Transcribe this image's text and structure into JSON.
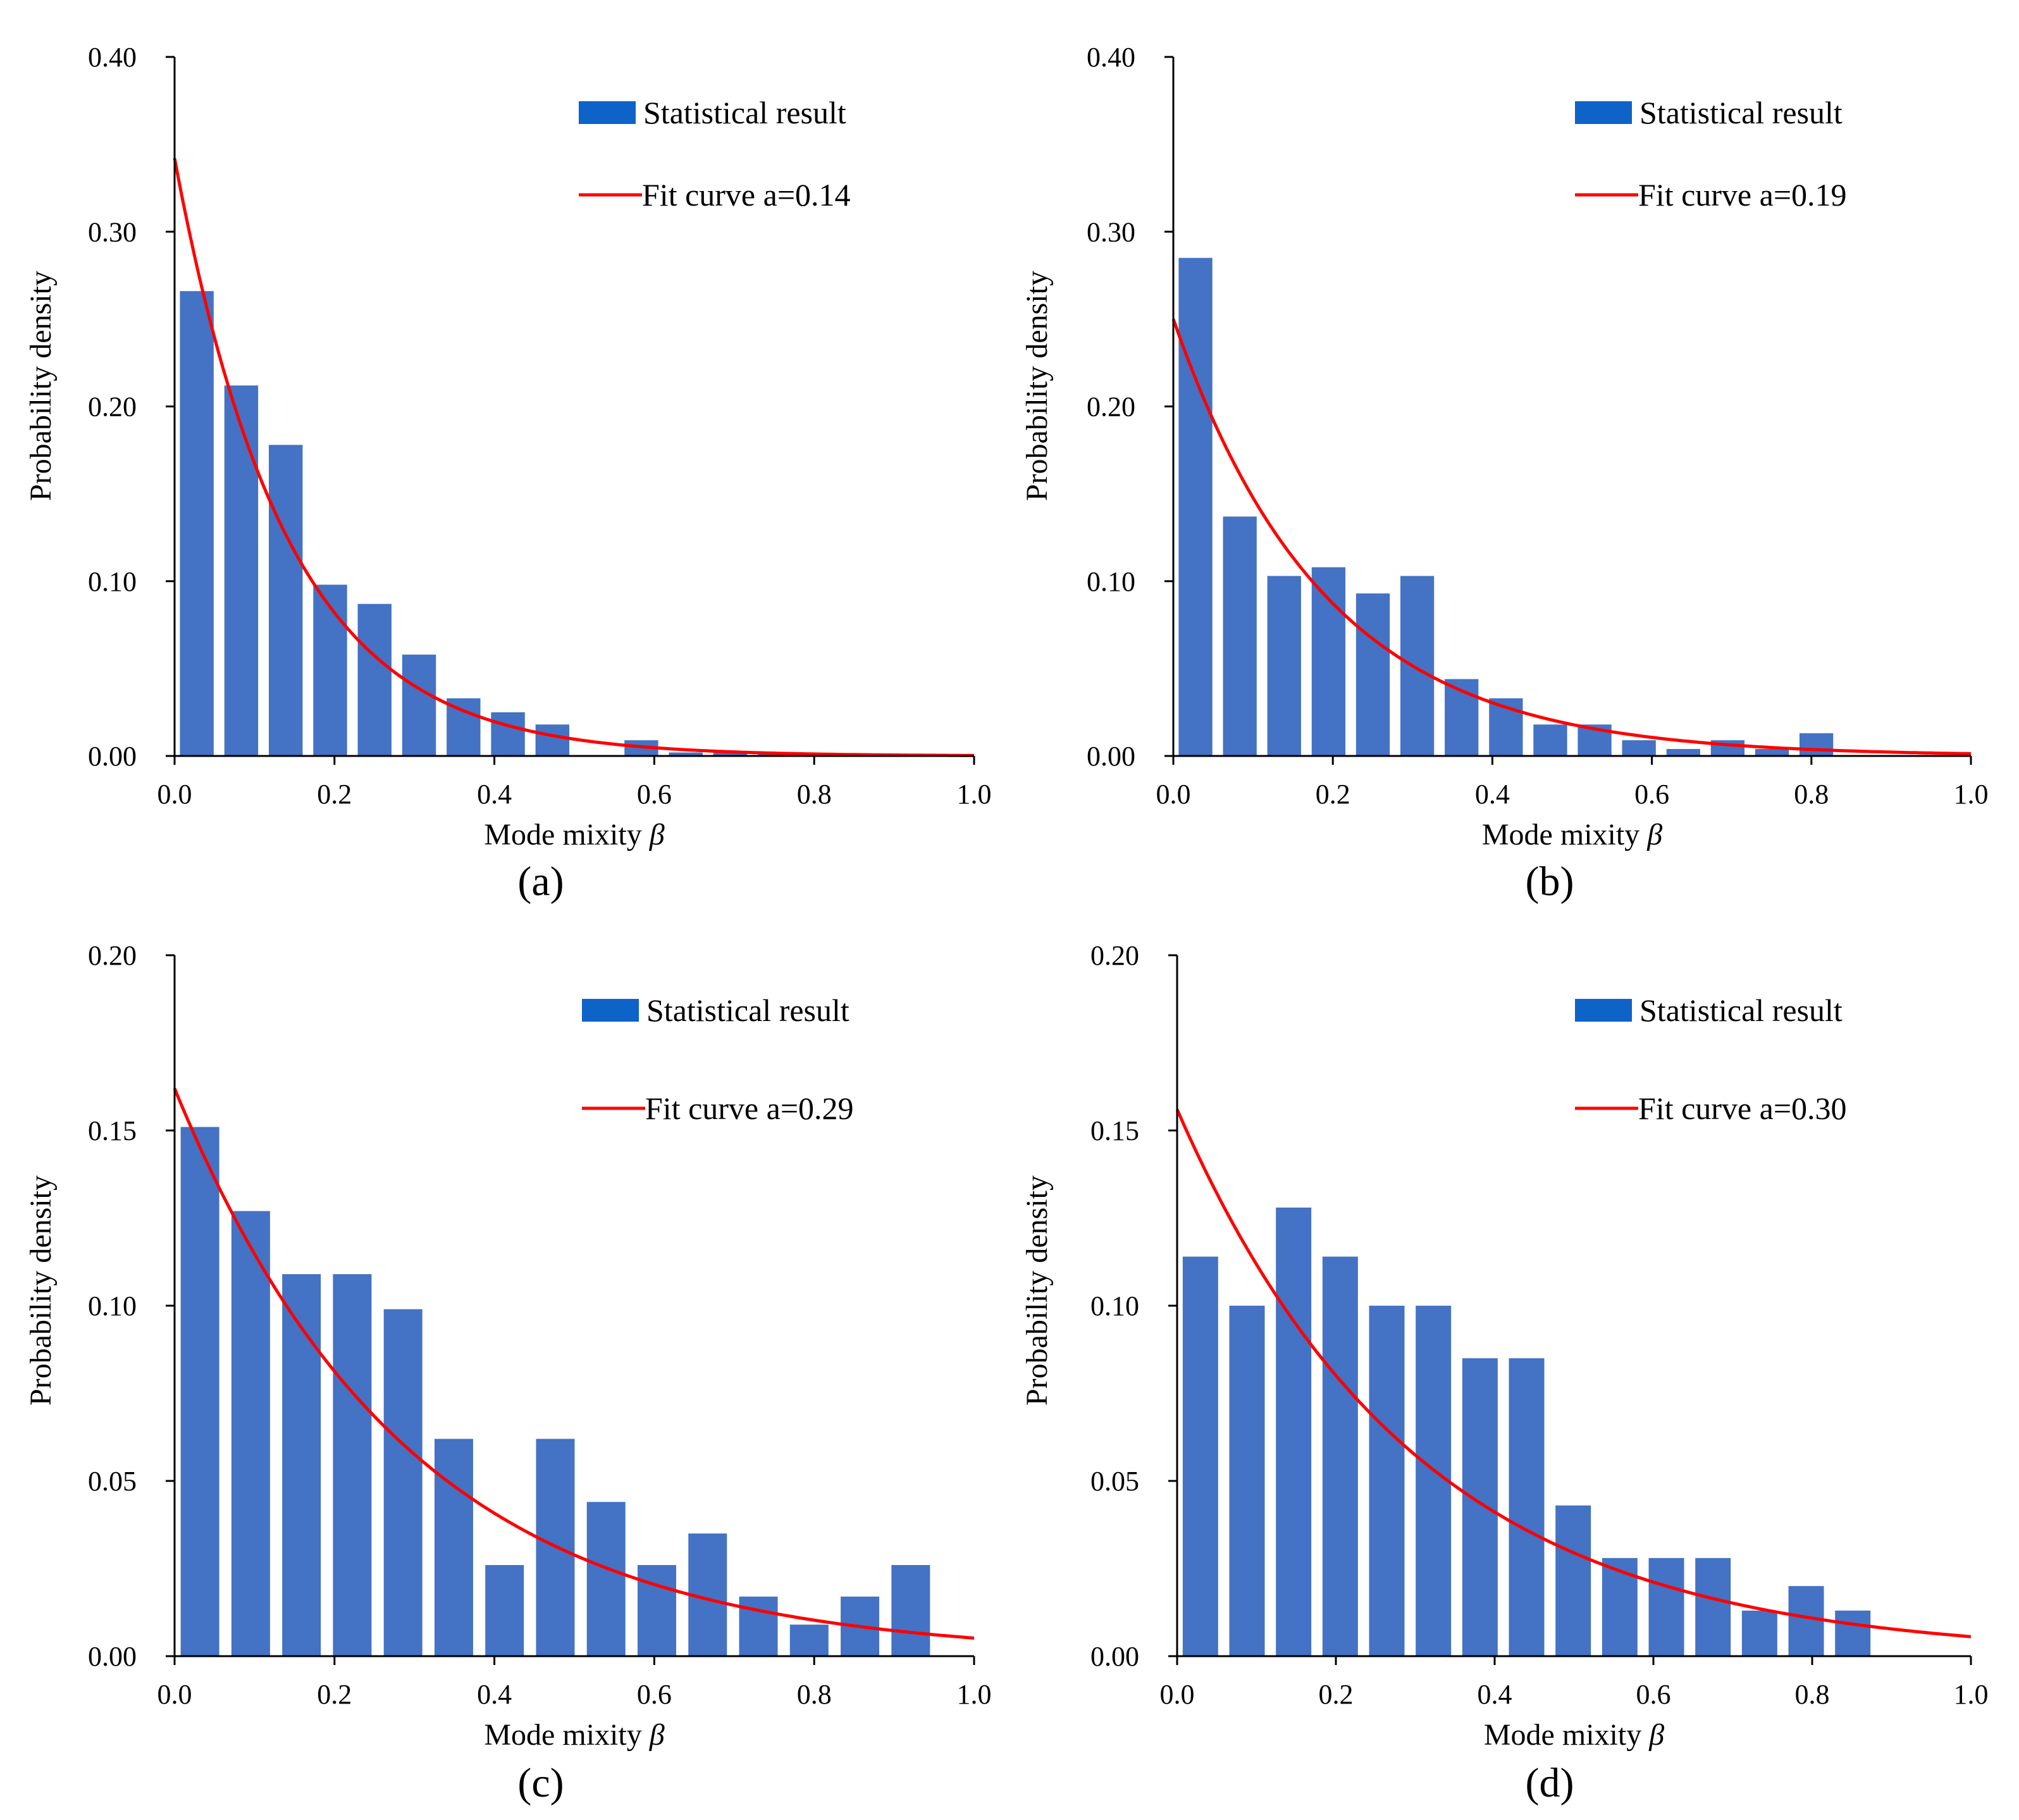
{
  "colors": {
    "bar": "#4472C4",
    "legend_bar": "#0E63C9",
    "curve": "#FF0000",
    "axis": "#000000"
  },
  "chart_data": [
    {
      "type": "bar",
      "panel": "(a)",
      "caption": "(a)",
      "xlabel": "Mode mixity",
      "xlabel_symbol": "β",
      "ylabel": "Probability density",
      "xlim": [
        0,
        1
      ],
      "ylim": [
        0,
        0.4
      ],
      "x_ticks": [
        "0.0",
        "0.2",
        "0.4",
        "0.6",
        "0.8",
        "1.0"
      ],
      "y_ticks": [
        "0.00",
        "0.10",
        "0.20",
        "0.30",
        "0.40"
      ],
      "legend": {
        "bars": "Statistical result",
        "curve": "Fit curve a=0.14",
        "position": "top-right"
      },
      "bins": {
        "start": 0,
        "width": 0.0556
      },
      "values": [
        0.266,
        0.212,
        0.178,
        0.098,
        0.087,
        0.058,
        0.033,
        0.025,
        0.018,
        0.0,
        0.009,
        0.002,
        0.002,
        0.001,
        0.0,
        0.0,
        0.0,
        0.0
      ],
      "fit": {
        "a": 0.14,
        "y0": 0.342
      }
    },
    {
      "type": "bar",
      "panel": "(b)",
      "caption": "(b)",
      "xlabel": "Mode mixity",
      "xlabel_symbol": "β",
      "ylabel": "Probability density",
      "xlim": [
        0,
        1
      ],
      "ylim": [
        0,
        0.4
      ],
      "x_ticks": [
        "0.0",
        "0.2",
        "0.4",
        "0.6",
        "0.8",
        "1.0"
      ],
      "y_ticks": [
        "0.00",
        "0.10",
        "0.20",
        "0.30",
        "0.40"
      ],
      "legend": {
        "bars": "Statistical result",
        "curve": "Fit curve a=0.19",
        "position": "top-right"
      },
      "bins": {
        "start": 0,
        "width": 0.0556
      },
      "values": [
        0.285,
        0.137,
        0.103,
        0.108,
        0.093,
        0.103,
        0.044,
        0.033,
        0.018,
        0.018,
        0.009,
        0.004,
        0.009,
        0.004,
        0.013,
        0.0,
        0.0,
        0.0
      ],
      "fit": {
        "a": 0.19,
        "y0": 0.25
      }
    },
    {
      "type": "bar",
      "panel": "(c)",
      "caption": "(c)",
      "xlabel": "Mode mixity",
      "xlabel_symbol": "β",
      "ylabel": "Probability density",
      "xlim": [
        0,
        1
      ],
      "ylim": [
        0,
        0.2
      ],
      "x_ticks": [
        "0.0",
        "0.2",
        "0.4",
        "0.6",
        "0.8",
        "1.0"
      ],
      "y_ticks": [
        "0.00",
        "0.05",
        "0.10",
        "0.15",
        "0.20"
      ],
      "legend": {
        "bars": "Statistical result",
        "curve": "Fit curve a=0.29",
        "position": "top-right"
      },
      "bins": {
        "start": 0,
        "width": 0.0635
      },
      "values": [
        0.151,
        0.127,
        0.109,
        0.109,
        0.099,
        0.062,
        0.026,
        0.062,
        0.044,
        0.026,
        0.035,
        0.017,
        0.009,
        0.017,
        0.026
      ],
      "fit": {
        "a": 0.29,
        "y0": 0.162
      }
    },
    {
      "type": "bar",
      "panel": "(d)",
      "caption": "(d)",
      "xlabel": "Mode mixity",
      "xlabel_symbol": "β",
      "ylabel": "Probability density",
      "xlim": [
        0,
        1
      ],
      "ylim": [
        0,
        0.2
      ],
      "x_ticks": [
        "0.0",
        "0.2",
        "0.4",
        "0.6",
        "0.8",
        "1.0"
      ],
      "y_ticks": [
        "0.00",
        "0.05",
        "0.10",
        "0.15",
        "0.20"
      ],
      "legend": {
        "bars": "Statistical result",
        "curve": "Fit curve a=0.30",
        "position": "top-right"
      },
      "bins": {
        "start": 0,
        "width": 0.0587
      },
      "values": [
        0.114,
        0.1,
        0.128,
        0.114,
        0.1,
        0.1,
        0.085,
        0.085,
        0.043,
        0.028,
        0.028,
        0.028,
        0.013,
        0.02,
        0.013
      ],
      "fit": {
        "a": 0.3,
        "y0": 0.156
      }
    }
  ]
}
